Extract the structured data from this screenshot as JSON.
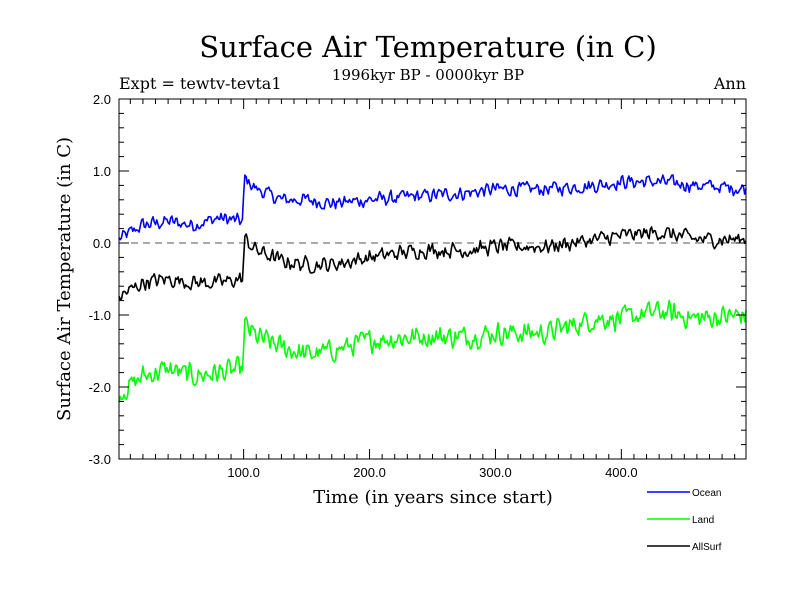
{
  "chart_data": {
    "type": "line",
    "title": "Surface Air Temperature (in C)",
    "subtitle": "1996kyr BP - 0000kyr BP",
    "experiment_label": "Expt = tewtv-tevta1",
    "season_label": "Ann",
    "xlabel": "Time (in years since start)",
    "ylabel": "Surface Air Temperature (in C)",
    "xlim": [
      1,
      499
    ],
    "ylim": [
      -3.0,
      2.0
    ],
    "x_ticks": [
      100,
      200,
      300,
      400
    ],
    "x_tick_labels": [
      "100.0",
      "200.0",
      "300.0",
      "400.0"
    ],
    "y_ticks": [
      -3,
      -2,
      -1,
      0,
      1,
      2
    ],
    "y_tick_labels": [
      "-3.0",
      "-2.0",
      "-1.0",
      "0.0",
      "1.0",
      "2.0"
    ],
    "reference_line": {
      "y": 0.0,
      "style": "dashed"
    },
    "legend_position": "bottom-right",
    "series": [
      {
        "name": "Ocean",
        "color": "#0000ff",
        "x": [
          1,
          20,
          40,
          60,
          80,
          99,
          101,
          110,
          130,
          150,
          170,
          200,
          240,
          280,
          300,
          340,
          380,
          400,
          430,
          460,
          499
        ],
        "values": [
          0.05,
          0.25,
          0.3,
          0.25,
          0.35,
          0.3,
          0.9,
          0.75,
          0.6,
          0.6,
          0.55,
          0.6,
          0.65,
          0.7,
          0.75,
          0.75,
          0.8,
          0.85,
          0.85,
          0.8,
          0.75
        ],
        "noise": 0.1
      },
      {
        "name": "Land",
        "color": "#00ff00",
        "x": [
          1,
          20,
          40,
          60,
          80,
          99,
          101,
          110,
          130,
          150,
          170,
          200,
          240,
          280,
          300,
          340,
          380,
          400,
          430,
          460,
          499
        ],
        "values": [
          -2.1,
          -1.85,
          -1.75,
          -1.85,
          -1.8,
          -1.75,
          -1.15,
          -1.3,
          -1.45,
          -1.55,
          -1.5,
          -1.35,
          -1.3,
          -1.3,
          -1.25,
          -1.25,
          -1.05,
          -1.05,
          -0.95,
          -1.05,
          -1.0
        ],
        "noise": 0.16
      },
      {
        "name": "AllSurf",
        "color": "#000000",
        "x": [
          1,
          20,
          40,
          60,
          80,
          99,
          101,
          110,
          130,
          150,
          170,
          200,
          240,
          280,
          300,
          340,
          380,
          400,
          430,
          460,
          499
        ],
        "values": [
          -0.75,
          -0.55,
          -0.5,
          -0.55,
          -0.55,
          -0.5,
          0.05,
          -0.1,
          -0.25,
          -0.3,
          -0.3,
          -0.2,
          -0.1,
          -0.1,
          -0.05,
          -0.05,
          0.05,
          0.1,
          0.15,
          0.05,
          0.05
        ],
        "noise": 0.11
      }
    ]
  }
}
